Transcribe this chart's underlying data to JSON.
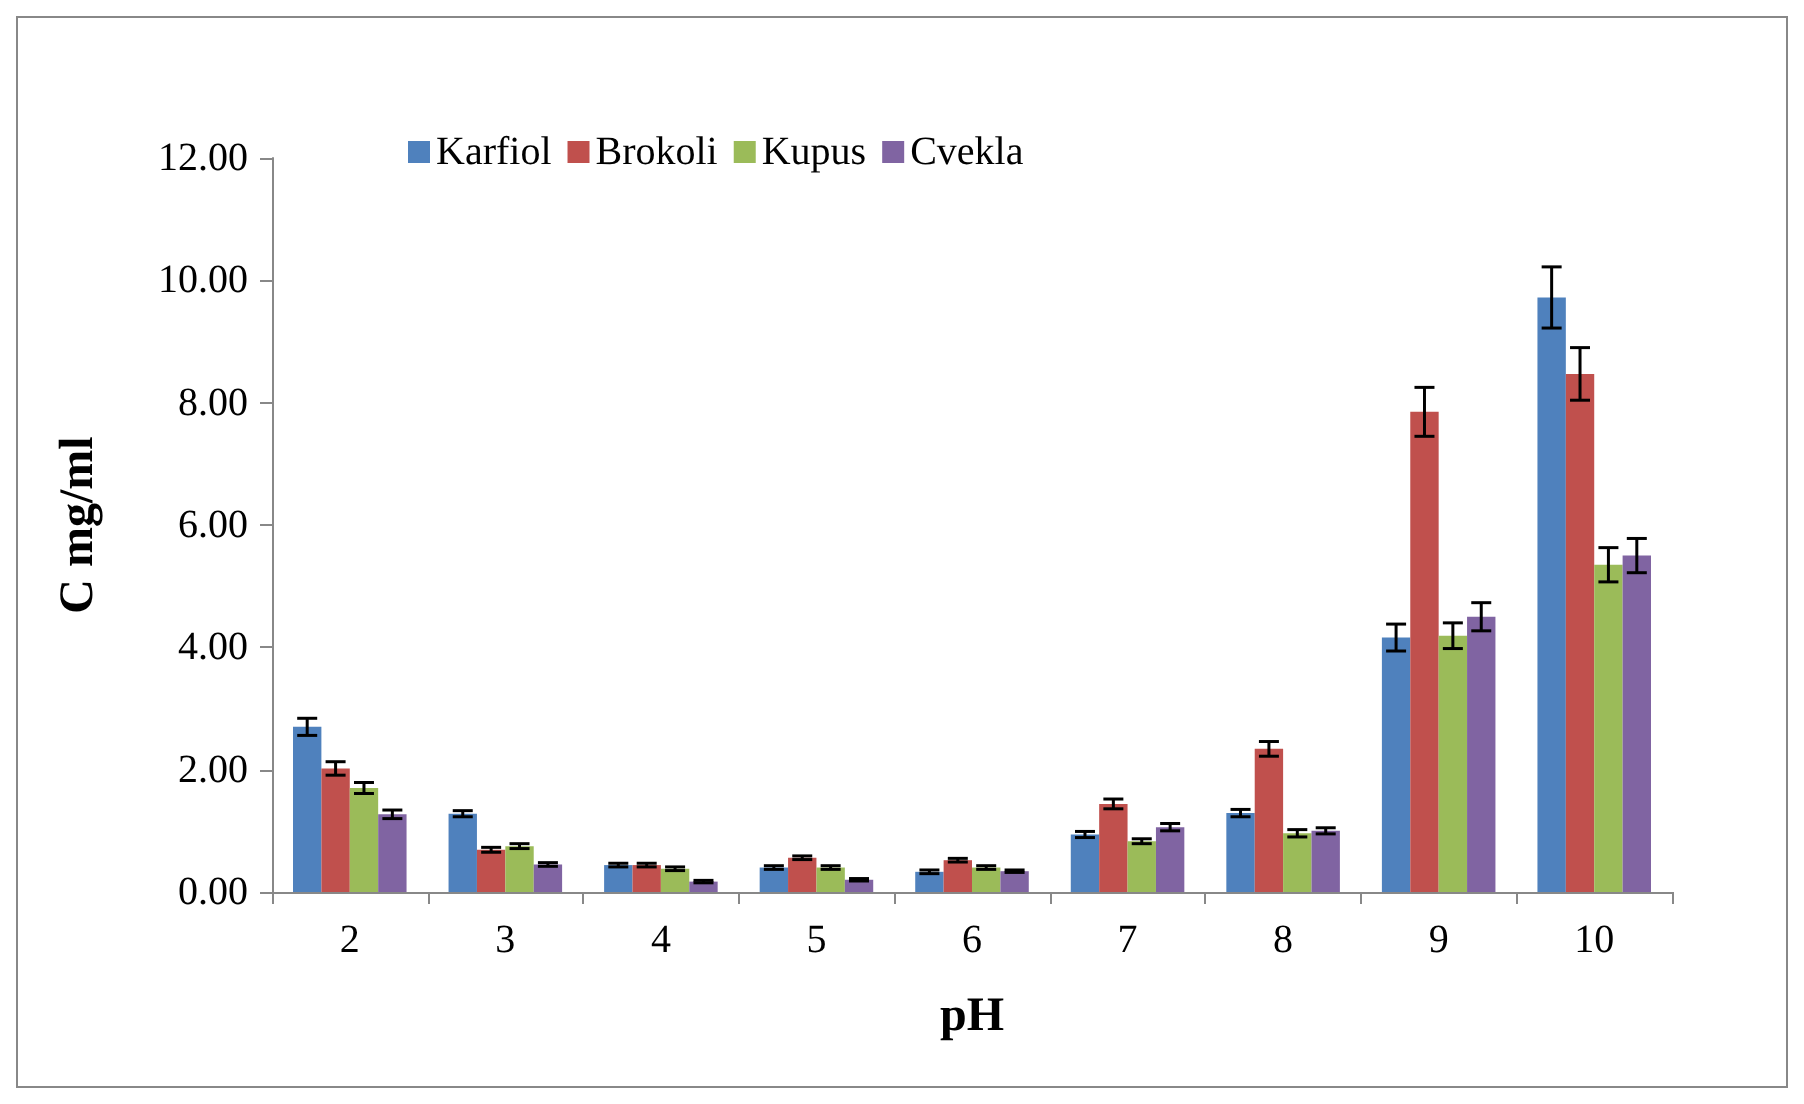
{
  "chart_data": {
    "type": "bar",
    "xlabel": "pH",
    "ylabel": "C mg/ml",
    "categories": [
      "2",
      "3",
      "4",
      "5",
      "6",
      "7",
      "8",
      "9",
      "10"
    ],
    "series": [
      {
        "name": "Karfiol",
        "color": "#4f81bd",
        "values": [
          2.7,
          1.28,
          0.44,
          0.4,
          0.33,
          0.94,
          1.29,
          4.16,
          9.72
        ],
        "errors": [
          0.14,
          0.05,
          0.03,
          0.03,
          0.03,
          0.05,
          0.06,
          0.22,
          0.5
        ]
      },
      {
        "name": "Brokoli",
        "color": "#c0504d",
        "values": [
          2.02,
          0.69,
          0.44,
          0.56,
          0.52,
          1.44,
          2.34,
          7.85,
          8.47
        ],
        "errors": [
          0.11,
          0.04,
          0.03,
          0.03,
          0.03,
          0.08,
          0.12,
          0.4,
          0.43
        ]
      },
      {
        "name": "Kupus",
        "color": "#9bbb59",
        "values": [
          1.7,
          0.75,
          0.38,
          0.4,
          0.4,
          0.83,
          0.96,
          4.19,
          5.35
        ],
        "errors": [
          0.09,
          0.04,
          0.03,
          0.03,
          0.03,
          0.04,
          0.06,
          0.21,
          0.28
        ]
      },
      {
        "name": "Cvekla",
        "color": "#8064a2",
        "values": [
          1.27,
          0.45,
          0.17,
          0.2,
          0.34,
          1.06,
          1.0,
          4.5,
          5.5
        ],
        "errors": [
          0.07,
          0.03,
          0.02,
          0.02,
          0.02,
          0.06,
          0.05,
          0.23,
          0.28
        ]
      }
    ],
    "ylim": [
      0,
      12
    ],
    "yticks": [
      {
        "value": 0,
        "label": "0.00"
      },
      {
        "value": 2,
        "label": "2.00"
      },
      {
        "value": 4,
        "label": "4.00"
      },
      {
        "value": 6,
        "label": "6.00"
      },
      {
        "value": 8,
        "label": "8.00"
      },
      {
        "value": 10,
        "label": "10.00"
      },
      {
        "value": 12,
        "label": "12.00"
      }
    ],
    "grid": false,
    "legend": "top"
  }
}
